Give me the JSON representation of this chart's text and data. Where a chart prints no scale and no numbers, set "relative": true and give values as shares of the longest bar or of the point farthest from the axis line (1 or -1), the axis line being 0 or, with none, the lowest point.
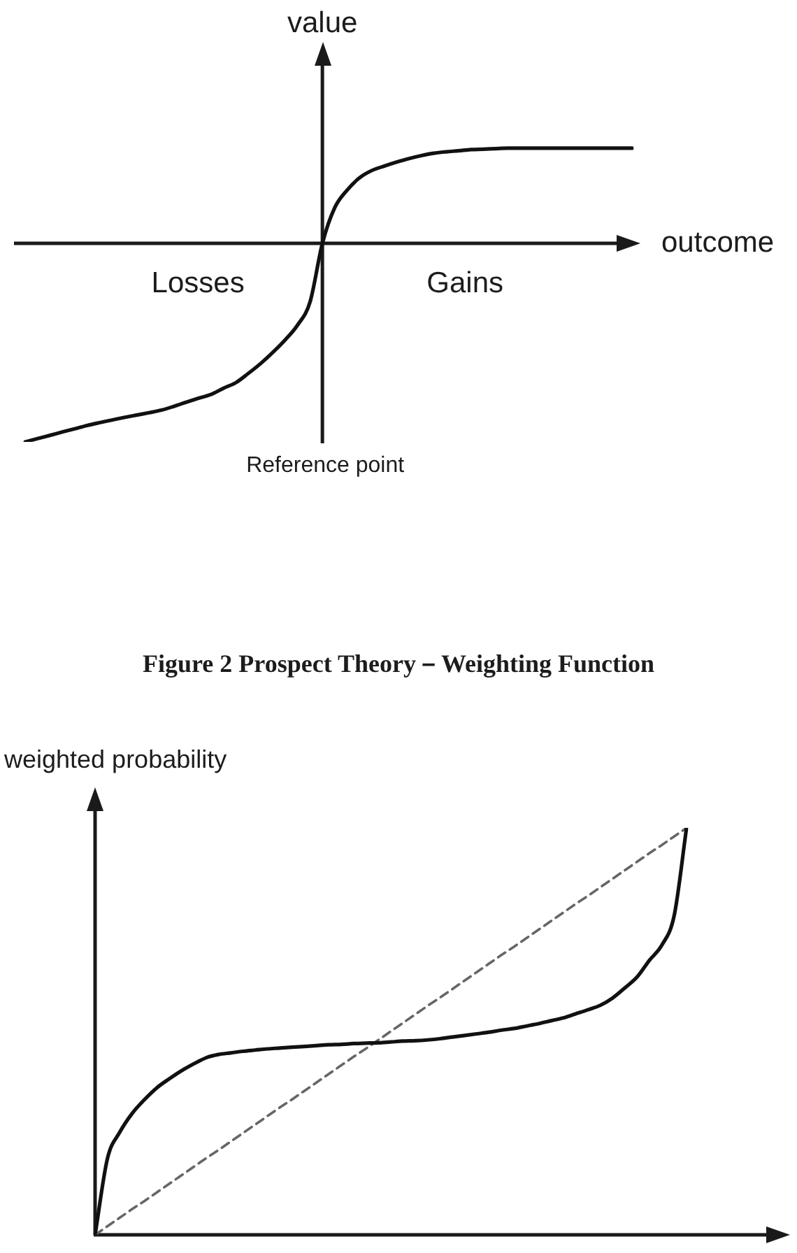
{
  "chart_data": [
    {
      "type": "line",
      "ylabel": "value",
      "xlabel": "outcome",
      "annotations": [
        "Losses",
        "Gains",
        "Reference point"
      ],
      "relative": true,
      "marker": "none",
      "categories": [
        null,
        null,
        null,
        null,
        null,
        null,
        null,
        null,
        null,
        null,
        null,
        null,
        null,
        null,
        null,
        null,
        null,
        null,
        null,
        null,
        null,
        null,
        null,
        null,
        null,
        null,
        null,
        null,
        null,
        null,
        null,
        null,
        null,
        null,
        null,
        null,
        null,
        null,
        null,
        null,
        null,
        null,
        null,
        null,
        null,
        null,
        null,
        null,
        null,
        null
      ],
      "series": [
        {
          "color": "#111111",
          "values": [
            -1,
            -0.983,
            -0.967,
            -0.95,
            -0.934,
            -0.917,
            -0.903,
            -0.89,
            -0.877,
            -0.865,
            -0.853,
            -0.84,
            -0.821,
            -0.8,
            -0.78,
            -0.761,
            -0.73,
            -0.702,
            -0.656,
            -0.606,
            -0.549,
            -0.486,
            -0.411,
            -0.296,
            0,
            0.18,
            0.268,
            0.33,
            0.367,
            0.389,
            0.409,
            0.427,
            0.442,
            0.454,
            0.461,
            0.466,
            0.472,
            0.474,
            0.477,
            0.479,
            0.479,
            0.479,
            0.479,
            0.479,
            0.479,
            0.479,
            0.479,
            0.479,
            0.479,
            0.479
          ]
        }
      ]
    },
    {
      "type": "line",
      "title": "Figure 2 Prospect Theory－Weighting Function",
      "ylabel": "weighted probability",
      "relative": true,
      "marker": "none",
      "categories": [
        null,
        null,
        null,
        null,
        null,
        null,
        null,
        null,
        null,
        null,
        null,
        null,
        null,
        null,
        null,
        null,
        null,
        null,
        null,
        null,
        null,
        null,
        null,
        null,
        null,
        null,
        null,
        null,
        null,
        null,
        null,
        null,
        null,
        null,
        null,
        null,
        null,
        null,
        null,
        null,
        null,
        null,
        null,
        null,
        null,
        null,
        null,
        null,
        null
      ],
      "series": [
        {
          "color": "#111111",
          "values": [
            0,
            0.187,
            0.252,
            0.298,
            0.332,
            0.361,
            0.383,
            0.403,
            0.42,
            0.435,
            0.443,
            0.447,
            0.451,
            0.454,
            0.457,
            0.459,
            0.461,
            0.463,
            0.465,
            0.467,
            0.468,
            0.47,
            0.471,
            0.472,
            0.474,
            0.476,
            0.477,
            0.479,
            0.482,
            0.486,
            0.49,
            0.494,
            0.498,
            0.503,
            0.507,
            0.513,
            0.519,
            0.526,
            0.533,
            0.543,
            0.553,
            0.564,
            0.582,
            0.607,
            0.634,
            0.675,
            0.712,
            0.785,
            1
          ]
        },
        {
          "color": "#666666",
          "line_style": "dashed",
          "values": [
            0,
            0.021,
            0.042,
            0.063,
            0.083,
            0.104,
            0.125,
            0.146,
            0.167,
            0.188,
            0.208,
            0.229,
            0.25,
            0.271,
            0.292,
            0.313,
            0.333,
            0.354,
            0.375,
            0.396,
            0.417,
            0.438,
            0.458,
            0.479,
            0.5,
            0.521,
            0.542,
            0.563,
            0.583,
            0.604,
            0.625,
            0.646,
            0.667,
            0.688,
            0.708,
            0.729,
            0.75,
            0.771,
            0.792,
            0.813,
            0.833,
            0.854,
            0.875,
            0.896,
            0.917,
            0.938,
            0.958,
            0.979,
            1
          ]
        }
      ]
    }
  ]
}
